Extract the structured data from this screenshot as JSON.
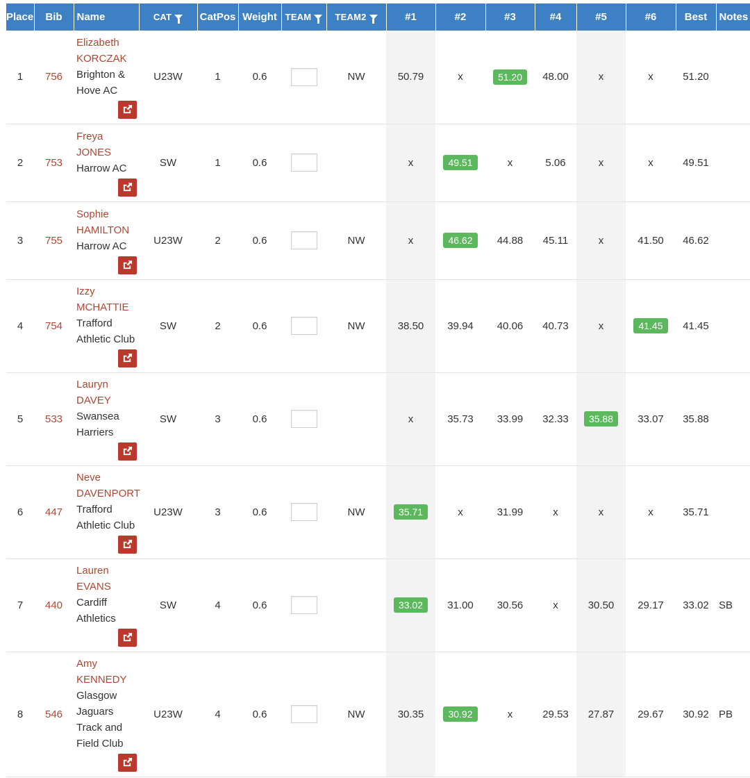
{
  "headers": {
    "place": "Place",
    "bib": "Bib",
    "name": "Name",
    "cat": "CAT",
    "catpos": "CatPos",
    "weight": "Weight",
    "team": "TEAM",
    "team2": "TEAM2",
    "t1": "#1",
    "t2": "#2",
    "t3": "#3",
    "t4": "#4",
    "t5": "#5",
    "t6": "#6",
    "best": "Best",
    "notes": "Notes"
  },
  "colors": {
    "header_bg": "#3d80c3",
    "link": "#b04632",
    "share_button": "#b93a2c",
    "best_badge": "#5cb85c",
    "shaded_column": "#f3f3f3"
  },
  "icons": {
    "filter": "funnel-icon",
    "share": "share-icon"
  },
  "rows": [
    {
      "place": "1",
      "bib": "756",
      "first": "Elizabeth",
      "last": "KORCZAK",
      "club": [
        "Brighton &",
        "Hove AC"
      ],
      "cat": "U23W",
      "catpos": "1",
      "weight": "0.6",
      "team2": "NW",
      "t1": "50.79",
      "t2": "x",
      "t3": "51.20",
      "t4": "48.00",
      "t5": "x",
      "t6": "x",
      "best": "51.20",
      "notes": "",
      "best_idx": 3
    },
    {
      "place": "2",
      "bib": "753",
      "first": "Freya",
      "last": "JONES",
      "club": [
        "Harrow AC"
      ],
      "cat": "SW",
      "catpos": "1",
      "weight": "0.6",
      "team2": "",
      "t1": "x",
      "t2": "49.51",
      "t3": "x",
      "t4": "5.06",
      "t5": "x",
      "t6": "x",
      "best": "49.51",
      "notes": "",
      "best_idx": 2
    },
    {
      "place": "3",
      "bib": "755",
      "first": "Sophie",
      "last": "HAMILTON",
      "club": [
        "Harrow AC"
      ],
      "cat": "U23W",
      "catpos": "2",
      "weight": "0.6",
      "team2": "NW",
      "t1": "x",
      "t2": "46.62",
      "t3": "44.88",
      "t4": "45.11",
      "t5": "x",
      "t6": "41.50",
      "best": "46.62",
      "notes": "",
      "best_idx": 2
    },
    {
      "place": "4",
      "bib": "754",
      "first": "Izzy",
      "last": "MCHATTIE",
      "club": [
        "Trafford",
        "Athletic Club"
      ],
      "cat": "SW",
      "catpos": "2",
      "weight": "0.6",
      "team2": "NW",
      "t1": "38.50",
      "t2": "39.94",
      "t3": "40.06",
      "t4": "40.73",
      "t5": "x",
      "t6": "41.45",
      "best": "41.45",
      "notes": "",
      "best_idx": 6
    },
    {
      "place": "5",
      "bib": "533",
      "first": "Lauryn",
      "last": "DAVEY",
      "club": [
        "Swansea",
        "Harriers"
      ],
      "cat": "SW",
      "catpos": "3",
      "weight": "0.6",
      "team2": "",
      "t1": "x",
      "t2": "35.73",
      "t3": "33.99",
      "t4": "32.33",
      "t5": "35.88",
      "t6": "33.07",
      "best": "35.88",
      "notes": "",
      "best_idx": 5
    },
    {
      "place": "6",
      "bib": "447",
      "first": "Neve",
      "last": "DAVENPORT",
      "club": [
        "Trafford",
        "Athletic Club"
      ],
      "cat": "U23W",
      "catpos": "3",
      "weight": "0.6",
      "team2": "NW",
      "t1": "35.71",
      "t2": "x",
      "t3": "31.99",
      "t4": "x",
      "t5": "x",
      "t6": "x",
      "best": "35.71",
      "notes": "",
      "best_idx": 1
    },
    {
      "place": "7",
      "bib": "440",
      "first": "Lauren",
      "last": "EVANS",
      "club": [
        "Cardiff",
        "Athletics"
      ],
      "cat": "SW",
      "catpos": "4",
      "weight": "0.6",
      "team2": "",
      "t1": "33.02",
      "t2": "31.00",
      "t3": "30.56",
      "t4": "x",
      "t5": "30.50",
      "t6": "29.17",
      "best": "33.02",
      "notes": "SB",
      "best_idx": 1
    },
    {
      "place": "8",
      "bib": "546",
      "first": "Amy",
      "last": "KENNEDY",
      "club": [
        "Glasgow",
        "Jaguars",
        "Track and",
        "Field Club"
      ],
      "cat": "U23W",
      "catpos": "4",
      "weight": "0.6",
      "team2": "NW",
      "t1": "30.35",
      "t2": "30.92",
      "t3": "x",
      "t4": "29.53",
      "t5": "27.87",
      "t6": "29.67",
      "best": "30.92",
      "notes": "PB",
      "best_idx": 2
    }
  ]
}
